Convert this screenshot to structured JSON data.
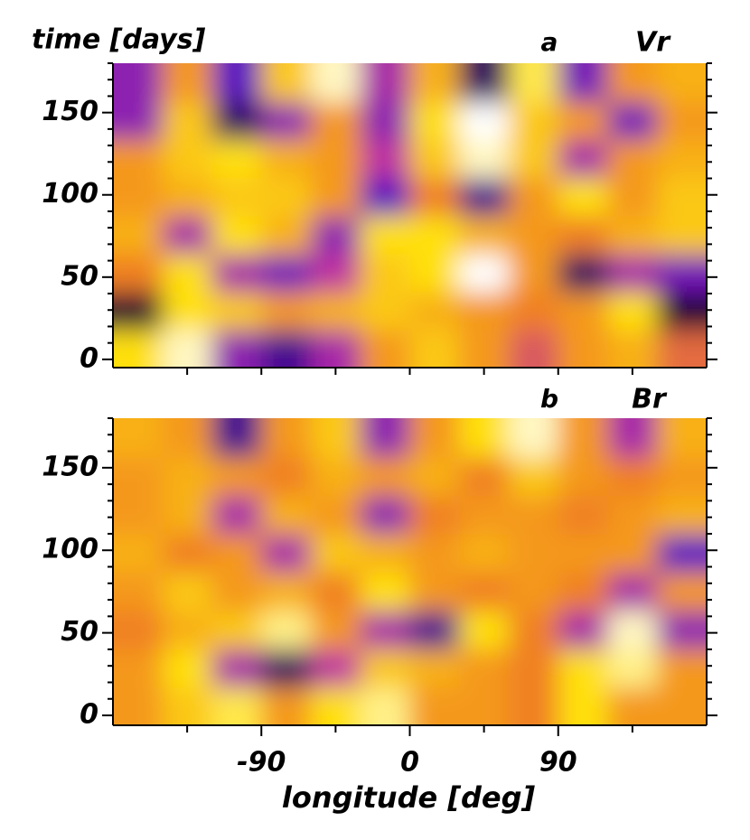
{
  "chart_data": [
    {
      "type": "heatmap",
      "ylabel": "time [days]",
      "panel_label": "a",
      "title": "Vr",
      "xlim": [
        -180,
        180
      ],
      "ylim": [
        -5,
        180
      ],
      "yticks": [
        0,
        50,
        100,
        150
      ],
      "xminor": [
        -135,
        -90,
        -45,
        0,
        45,
        90,
        135
      ],
      "yminor": [
        10,
        20,
        30,
        40,
        60,
        70,
        80,
        90,
        110,
        120,
        130,
        140,
        160,
        170,
        180
      ],
      "zlim": [
        -1,
        1
      ],
      "colormap": [
        "#000000",
        "#5a10c0",
        "#c030a0",
        "#f08020",
        "#ffe010",
        "#ffffff"
      ],
      "z": [
        [
          0.6,
          0.9,
          -0.4,
          -0.7,
          -0.3,
          0.3,
          0.5,
          0.3,
          0,
          0.3,
          0.4,
          0.1
        ],
        [
          -0.9,
          0.6,
          0.5,
          0.3,
          0.4,
          0.5,
          0.4,
          0.3,
          0.2,
          0.3,
          0.6,
          -0.9
        ],
        [
          0.2,
          0.6,
          -0.3,
          -0.5,
          -0.2,
          0.5,
          0.6,
          1.0,
          0.3,
          -0.8,
          -0.3,
          -0.5
        ],
        [
          0.4,
          -0.3,
          0.6,
          0.4,
          -0.4,
          0.6,
          0.6,
          0.4,
          0.3,
          0.2,
          0.4,
          0.5
        ],
        [
          0.3,
          0.4,
          0.5,
          0.5,
          0.3,
          -0.6,
          0.2,
          -0.7,
          0.3,
          0.6,
          0.3,
          0.5
        ],
        [
          0.3,
          0.5,
          0.6,
          0.4,
          0.3,
          -0.2,
          0.5,
          0.9,
          0.5,
          -0.3,
          0.3,
          0.4
        ],
        [
          -0.4,
          0.5,
          -0.8,
          -0.4,
          0.3,
          -0.4,
          0.6,
          1.0,
          0.5,
          0.3,
          -0.5,
          0.3
        ],
        [
          -0.4,
          0.3,
          -0.6,
          0.5,
          0.9,
          -0.3,
          0.4,
          -0.8,
          0.7,
          -0.5,
          0.3,
          0.4
        ]
      ]
    },
    {
      "type": "heatmap",
      "xlabel": "longitude [deg]",
      "panel_label": "b",
      "title": "Br",
      "xlim": [
        -180,
        180
      ],
      "ylim": [
        -6,
        180
      ],
      "yticks": [
        0,
        50,
        100,
        150
      ],
      "xticks": [
        -90,
        0,
        90
      ],
      "xminor": [
        -135,
        -45,
        45,
        135
      ],
      "yminor": [
        10,
        20,
        30,
        40,
        60,
        70,
        80,
        90,
        110,
        120,
        130,
        140,
        160,
        170,
        180
      ],
      "zlim": [
        -1,
        1
      ],
      "colormap": [
        "#000000",
        "#5a10c0",
        "#c030a0",
        "#f08020",
        "#ffe010",
        "#ffffff"
      ],
      "z": [
        [
          0.3,
          0.5,
          0.7,
          0.3,
          0.6,
          0.8,
          0.3,
          0.3,
          0.2,
          0.6,
          0.3,
          0.3
        ],
        [
          0.3,
          0.6,
          -0.3,
          -0.8,
          -0.2,
          0.5,
          0.4,
          0.3,
          0.2,
          0.6,
          0.8,
          0.3
        ],
        [
          0.2,
          0.4,
          0.5,
          0.8,
          0.3,
          -0.3,
          -0.7,
          0.6,
          0.2,
          -0.3,
          0.9,
          -0.4
        ],
        [
          0.3,
          0.5,
          0.3,
          0.4,
          0.2,
          0.6,
          0.3,
          0.2,
          0.3,
          0.2,
          -0.3,
          0.3
        ],
        [
          0.4,
          0.2,
          0.3,
          -0.3,
          0.5,
          0.4,
          0.3,
          0.4,
          0.3,
          0.3,
          0.3,
          -0.6
        ],
        [
          0.3,
          0.4,
          -0.3,
          0.4,
          0.3,
          -0.4,
          0.2,
          0.3,
          0.3,
          0.2,
          0.3,
          0.4
        ],
        [
          0.3,
          0.4,
          0.3,
          0.2,
          0.4,
          0.3,
          0.4,
          0.2,
          0.5,
          0.3,
          0.2,
          0.3
        ],
        [
          0.4,
          0.3,
          -0.7,
          0.3,
          0.5,
          -0.4,
          0.3,
          0.6,
          0.9,
          0.3,
          -0.3,
          0.4
        ]
      ]
    }
  ]
}
